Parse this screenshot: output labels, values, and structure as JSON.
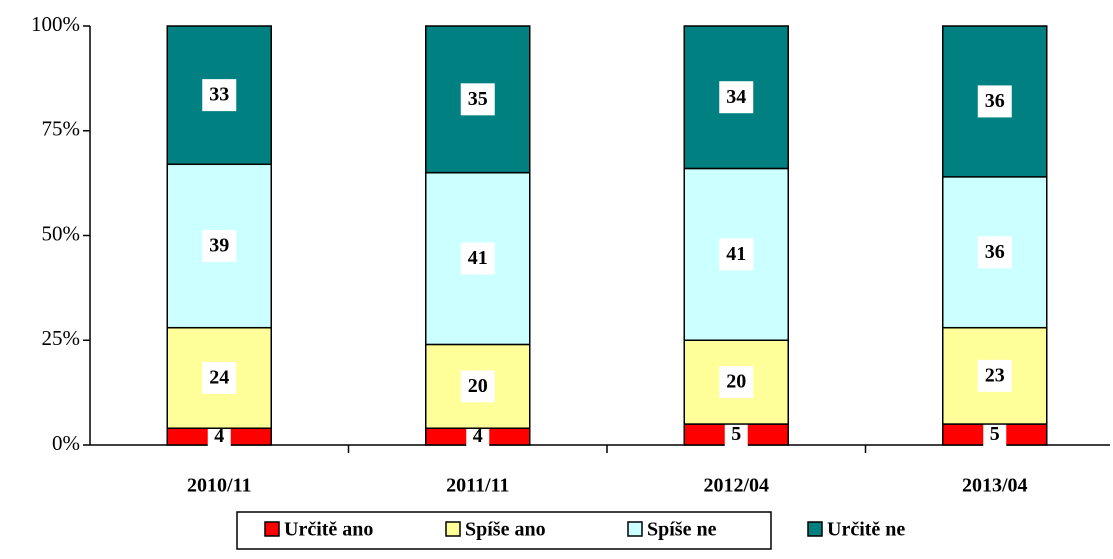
{
  "chart_data": {
    "type": "stacked_bar_percent",
    "categories": [
      "2010/11",
      "2011/11",
      "2012/04",
      "2013/04"
    ],
    "series": [
      {
        "name": "Určitě ano",
        "color": "#ff0000",
        "values": [
          4,
          4,
          5,
          5
        ]
      },
      {
        "name": "Spíše ano",
        "color": "#ffff99",
        "values": [
          24,
          20,
          20,
          23
        ]
      },
      {
        "name": "Spíše ne",
        "color": "#ccffff",
        "values": [
          39,
          41,
          41,
          36
        ]
      },
      {
        "name": "Určitě ne",
        "color": "#008080",
        "values": [
          33,
          35,
          34,
          36
        ]
      }
    ],
    "ylim": [
      0,
      100
    ],
    "yticks": [
      {
        "value": 0,
        "label": "0%"
      },
      {
        "value": 25,
        "label": "25%"
      },
      {
        "value": 50,
        "label": "50%"
      },
      {
        "value": 75,
        "label": "75%"
      },
      {
        "value": 100,
        "label": "100%"
      }
    ],
    "legend": "bottom"
  }
}
